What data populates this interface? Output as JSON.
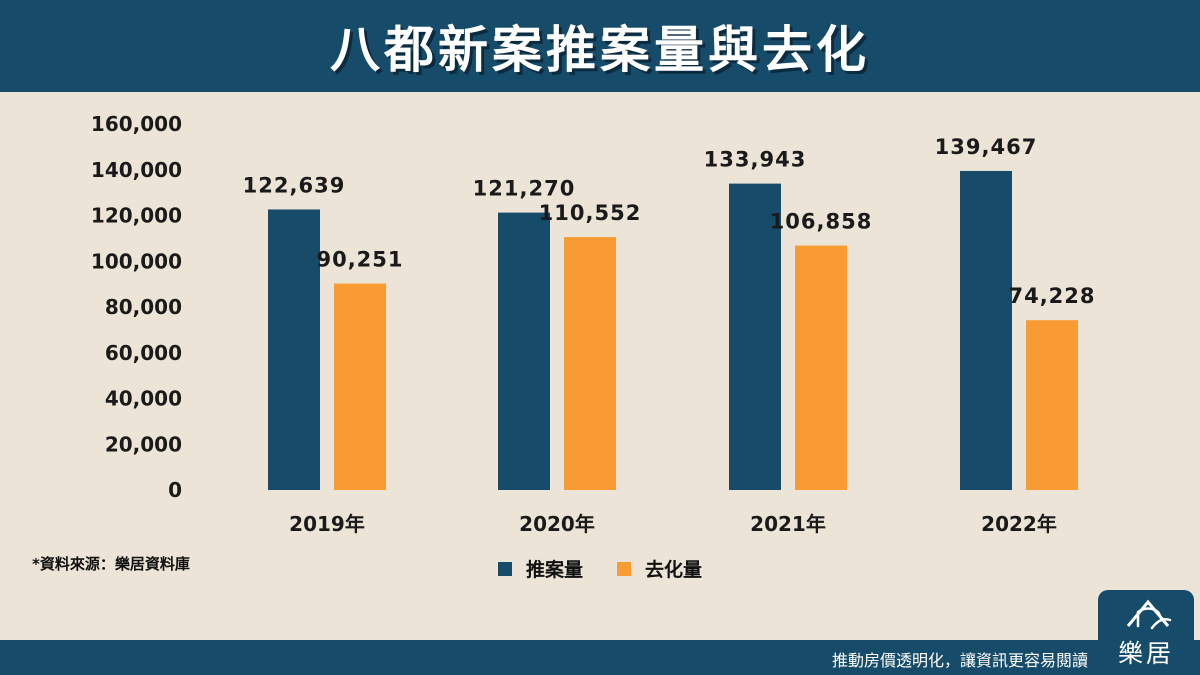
{
  "header": {
    "title": "八都新案推案量與去化"
  },
  "chart_data": {
    "type": "bar",
    "categories": [
      "2019年",
      "2020年",
      "2021年",
      "2022年"
    ],
    "series": [
      {
        "name": "推案量",
        "color": "#174b6a",
        "values": [
          122639,
          121270,
          133943,
          139467
        ],
        "labels": [
          "122,639",
          "121,270",
          "133,943",
          "139,467"
        ]
      },
      {
        "name": "去化量",
        "color": "#f99b33",
        "values": [
          90251,
          110552,
          106858,
          74228
        ],
        "labels": [
          "90,251",
          "110,552",
          "106,858",
          "74,228"
        ]
      }
    ],
    "ylim": [
      0,
      160000
    ],
    "yticks": [
      "0",
      "20,000",
      "40,000",
      "60,000",
      "80,000",
      "100,000",
      "120,000",
      "140,000",
      "160,000"
    ],
    "grid": false,
    "legend": "bottom"
  },
  "source_note": "*資料來源：樂居資料庫",
  "footer": {
    "slogan": "推動房價透明化，讓資訊更容易閱讀"
  },
  "logo": {
    "text": "樂居"
  }
}
